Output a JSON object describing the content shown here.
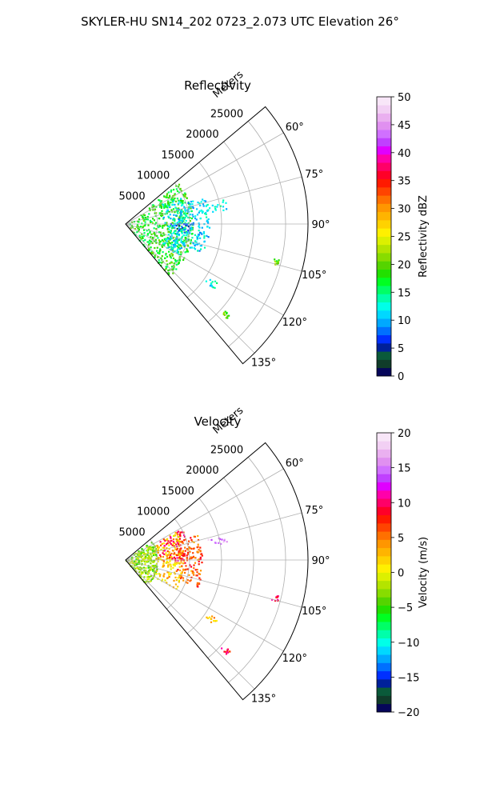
{
  "figure": {
    "suptitle": "SKYLER-HU  SN14_202  0723_2.073 UTC Elevation 26°"
  },
  "chart_data": [
    {
      "type": "polar-sector",
      "title": "Reflectivity",
      "radial_axis_label": "Meters",
      "radial_ticks": [
        "5000",
        "10000",
        "15000",
        "20000",
        "25000"
      ],
      "radial_tick_values": [
        5000,
        10000,
        15000,
        20000,
        25000
      ],
      "rmax": 28500,
      "theta_range_deg": [
        50,
        140
      ],
      "angle_ticks": [
        "60°",
        "75°",
        "90°",
        "105°",
        "120°",
        "135°"
      ],
      "angle_tick_values_deg": [
        60,
        75,
        90,
        105,
        120,
        135
      ],
      "grid": true,
      "colorbar": {
        "label": "Reflectivity dBZ",
        "range": [
          0,
          50
        ],
        "ticks": [
          "0",
          "5",
          "10",
          "15",
          "20",
          "25",
          "30",
          "35",
          "40",
          "45",
          "50"
        ],
        "colors": [
          "#06065a",
          "#103c2a",
          "#0a5a3a",
          "#00209a",
          "#0030ff",
          "#0070ff",
          "#00a8ff",
          "#00d8ff",
          "#00ffe8",
          "#00ffaa",
          "#00ff66",
          "#00ff22",
          "#22e000",
          "#55d400",
          "#88dc00",
          "#b4e400",
          "#dcf000",
          "#fff000",
          "#ffd200",
          "#ffb400",
          "#ff9600",
          "#ff7000",
          "#ff4400",
          "#ff1a00",
          "#ff0028",
          "#ff0068",
          "#ff00aa",
          "#e000ff",
          "#c040ff",
          "#d070ff",
          "#e090f0",
          "#eab0f0",
          "#f2d0f4",
          "#f8e6f8"
        ]
      },
      "data_regions": [
        {
          "theta": [
            52,
            140
          ],
          "r": [
            0,
            10500
          ],
          "value": 18
        },
        {
          "theta": [
            60,
            120
          ],
          "r": [
            5500,
            9500
          ],
          "value": 12
        },
        {
          "theta": [
            70,
            110
          ],
          "r": [
            6500,
            13000
          ],
          "value": 11
        },
        {
          "theta": [
            75,
            82
          ],
          "r": [
            11000,
            16000
          ],
          "value": 12
        },
        {
          "theta": [
            88,
            96
          ],
          "r": [
            6000,
            10000
          ],
          "value": 6
        },
        {
          "theta": [
            103,
            105
          ],
          "r": [
            23500,
            24500
          ],
          "value": 20
        },
        {
          "theta": [
            122,
            126
          ],
          "r": [
            15000,
            17000
          ],
          "value": 13
        },
        {
          "theta": [
            131,
            133
          ],
          "r": [
            20000,
            21500
          ],
          "value": 20
        }
      ]
    },
    {
      "type": "polar-sector",
      "title": "Velocity",
      "radial_axis_label": "Meters",
      "radial_ticks": [
        "5000",
        "10000",
        "15000",
        "20000",
        "25000"
      ],
      "radial_tick_values": [
        5000,
        10000,
        15000,
        20000,
        25000
      ],
      "rmax": 28500,
      "theta_range_deg": [
        50,
        140
      ],
      "angle_ticks": [
        "60°",
        "75°",
        "90°",
        "105°",
        "120°",
        "135°"
      ],
      "angle_tick_values_deg": [
        60,
        75,
        90,
        105,
        120,
        135
      ],
      "grid": true,
      "colorbar": {
        "label": "Velocity (m/s)",
        "range": [
          -20,
          20
        ],
        "ticks": [
          "−20",
          "−15",
          "−10",
          "−5",
          "0",
          "5",
          "10",
          "15",
          "20"
        ],
        "colors": [
          "#06065a",
          "#103c2a",
          "#0a5a3a",
          "#00209a",
          "#0030ff",
          "#0070ff",
          "#00a8ff",
          "#00d8ff",
          "#00ffe8",
          "#00ffaa",
          "#00ff66",
          "#00ff22",
          "#22e000",
          "#55d400",
          "#88dc00",
          "#b4e400",
          "#dcf000",
          "#fff000",
          "#ffd200",
          "#ffb400",
          "#ff9600",
          "#ff7000",
          "#ff4400",
          "#ff1a00",
          "#ff0028",
          "#ff0068",
          "#ff00aa",
          "#e000ff",
          "#c040ff",
          "#d070ff",
          "#e090f0",
          "#eab0f0",
          "#f2d0f4",
          "#f8e6f8"
        ]
      },
      "data_regions": [
        {
          "theta": [
            52,
            140
          ],
          "r": [
            0,
            5000
          ],
          "value": -3
        },
        {
          "theta": [
            60,
            120
          ],
          "r": [
            4000,
            9000
          ],
          "value": 2
        },
        {
          "theta": [
            60,
            90
          ],
          "r": [
            5000,
            10000
          ],
          "value": 8
        },
        {
          "theta": [
            70,
            110
          ],
          "r": [
            7000,
            12000
          ],
          "value": 6
        },
        {
          "theta": [
            74,
            80
          ],
          "r": [
            12000,
            16000
          ],
          "value": 16
        },
        {
          "theta": [
            103,
            105
          ],
          "r": [
            23500,
            24500
          ],
          "value": 9
        },
        {
          "theta": [
            122,
            126
          ],
          "r": [
            15000,
            17000
          ],
          "value": 3
        },
        {
          "theta": [
            131,
            133
          ],
          "r": [
            20000,
            21500
          ],
          "value": 9
        }
      ]
    }
  ]
}
